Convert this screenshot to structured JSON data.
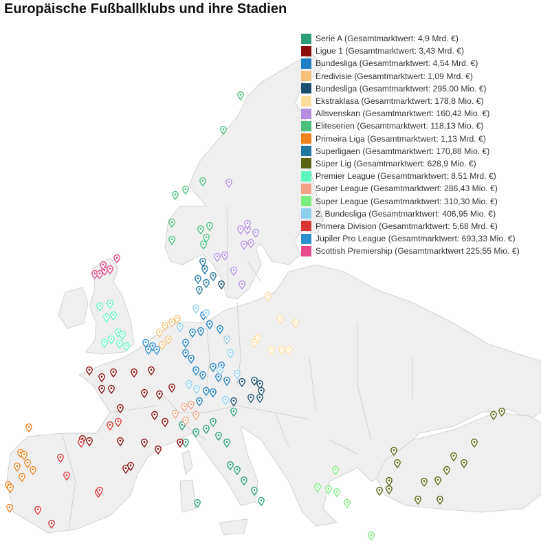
{
  "title": "Europäische Fußballklubs und ihre Stadien",
  "colors": {
    "land": "#efefef",
    "border": "#c9c9c9"
  },
  "legend": [
    {
      "key": "ita",
      "label": "Serie A (Gesamtmarktwert: 4,9 Mrd. €)",
      "color": "#2a9d78"
    },
    {
      "key": "fra",
      "label": "Ligue 1 (Gesamtmarktwert: 3,43 Mrd. €)",
      "color": "#8b0e0e"
    },
    {
      "key": "ger",
      "label": "Bundesliga (Gesamtmarktwert: 4,54 Mrd. €)",
      "color": "#1f7fc4"
    },
    {
      "key": "ned",
      "label": "Eredivisie (Gesamtmarktwert: 1,09 Mrd. €)",
      "color": "#f5c07a"
    },
    {
      "key": "aut",
      "label": "Bundesliga (Gesamtmarktwert: 295,00 Mio. €)",
      "color": "#1d4e6e"
    },
    {
      "key": "pol",
      "label": "Ekstraklasa (Gesamtmarktwert: 178,8 Mio. €)",
      "color": "#fddc9c"
    },
    {
      "key": "swe",
      "label": "Allsvenskan (Gesamtmarktwert: 160,42 Mio. €)",
      "color": "#b38ee0"
    },
    {
      "key": "nor",
      "label": "Eliteserien (Gesamtmarktwert: 118,13 Mio. €)",
      "color": "#48c07c"
    },
    {
      "key": "por",
      "label": "Primeira Liga (Gesamtmarktwert: 1,13 Mrd. €)",
      "color": "#f0821e"
    },
    {
      "key": "den",
      "label": "Superligaen (Gesamtmarktwert: 170,88 Mio. €)",
      "color": "#2277a0"
    },
    {
      "key": "tur",
      "label": "Süper Lig (Gesamtmarktwert: 628,9 Mio. €)",
      "color": "#5a6410"
    },
    {
      "key": "eng",
      "label": "Premier League (Gesamtmarktwert: 8,51 Mrd. €)",
      "color": "#5ff7c0"
    },
    {
      "key": "sui",
      "label": "Super League (Gesamtmarktwert: 286,43 Mio. €)",
      "color": "#f4a386"
    },
    {
      "key": "gre",
      "label": "Super League (Gesamtmarktwert: 310,30 Mio. €)",
      "color": "#7ded7d"
    },
    {
      "key": "ger2",
      "label": "2. Bundesliga (Gesamtmarktwert: 406,95 Mio. €)",
      "color": "#8ecff0"
    },
    {
      "key": "esp",
      "label": "Primera Division (Gesamtmarktwert: 5,68 Mrd. €)",
      "color": "#d93535"
    },
    {
      "key": "bel",
      "label": "Jupiler Pro League (Gesamtmarktwert: 693,33 Mio. €)",
      "color": "#2b8fd0"
    },
    {
      "key": "sco",
      "label": "Scottish Premiership (Gesamtmarktwert 225,55 Mio. €)",
      "color": "#e8478d"
    }
  ]
}
